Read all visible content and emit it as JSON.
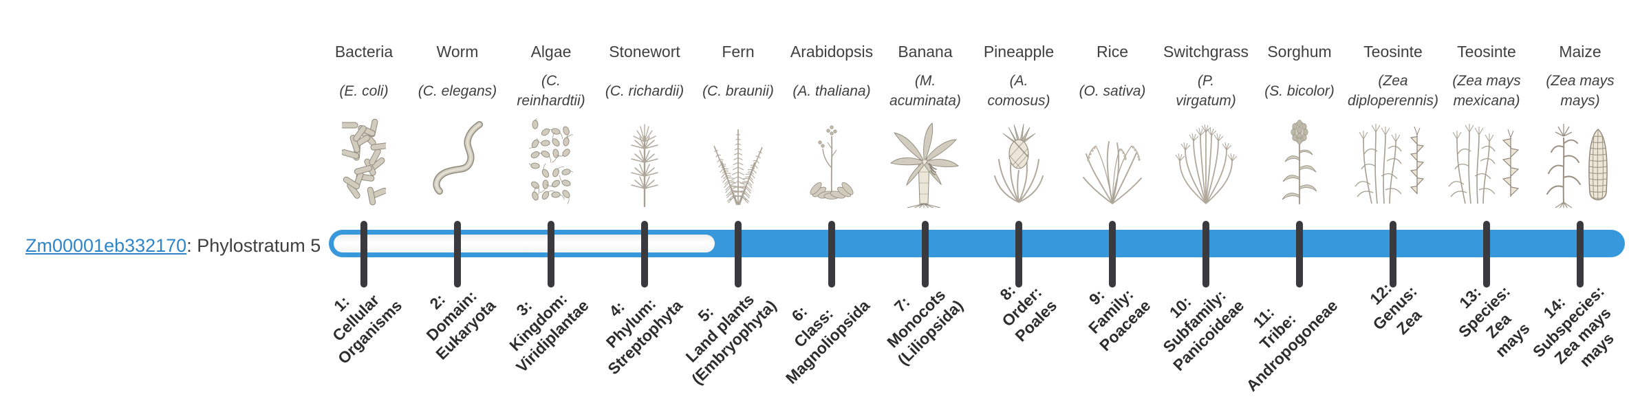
{
  "colors": {
    "bar_blue": "#3898dc",
    "tick": "#3a3a3e",
    "text": "#3f3f3f",
    "link_blue": "#2e86c8",
    "label_dark": "#2d2d2d"
  },
  "gene": {
    "id": "Zm00001eb332170",
    "rest": ": Phylostratum 5"
  },
  "chart_data": {
    "type": "bar",
    "title": "Gene phylostratum assignment timeline",
    "gene": "Zm00001eb332170",
    "phylostratum": 5,
    "categories": [
      "1: Cellular Organisms",
      "2: Domain: Eukaryota",
      "3: Kingdom: Viridiplantae",
      "4: Phylum: Streptophyta",
      "5: Land plants (Embryophyta)",
      "6: Class: Magnoliopsida",
      "7: Monocots (Liliopsida)",
      "8: Order: Poales",
      "9: Family: Poaceae",
      "10: Subfamily: Panicoideae",
      "11: Tribe: Andropogoneae",
      "12: Genus: Zea",
      "13: Species: Zea mays",
      "14: Subspecies: Zea mays mays"
    ],
    "bar_filled_range": [
      5,
      14
    ],
    "bar_unfilled_range": [
      1,
      5
    ],
    "legend_position": "none",
    "grid": false
  },
  "organisms": [
    {
      "name": "Bacteria",
      "sci": "(E. coli)",
      "icon": "bacteria-illustration",
      "stratum": "1:\nCellular\nOrganisms"
    },
    {
      "name": "Worm",
      "sci": "(C. elegans)",
      "icon": "worm-illustration",
      "stratum": "2:\nDomain:\nEukaryota"
    },
    {
      "name": "Algae",
      "sci": "(C.\nreinhardtii)",
      "icon": "algae-illustration",
      "stratum": "3:\nKingdom:\nViridiplantae"
    },
    {
      "name": "Stonewort",
      "sci": "(C. richardii)",
      "icon": "stonewort-illustration",
      "stratum": "4:\nPhylum:\nStreptophyta"
    },
    {
      "name": "Fern",
      "sci": "(C. braunii)",
      "icon": "fern-illustration",
      "stratum": "5:\nLand plants\n(Embryophyta)"
    },
    {
      "name": "Arabidopsis",
      "sci": "(A. thaliana)",
      "icon": "arabidopsis-illustration",
      "stratum": "6:\nClass:\nMagnoliopsida"
    },
    {
      "name": "Banana",
      "sci": "(M.\nacuminata)",
      "icon": "banana-illustration",
      "stratum": "7:\nMonocots\n(Liliopsida)"
    },
    {
      "name": "Pineapple",
      "sci": "(A.\ncomosus)",
      "icon": "pineapple-illustration",
      "stratum": "8:\nOrder:\nPoales"
    },
    {
      "name": "Rice",
      "sci": "(O. sativa)",
      "icon": "rice-illustration",
      "stratum": "9:\nFamily:\nPoaceae"
    },
    {
      "name": "Switchgrass",
      "sci": "(P.\nvirgatum)",
      "icon": "switchgrass-illustration",
      "stratum": "10:\nSubfamily:\nPanicoideae"
    },
    {
      "name": "Sorghum",
      "sci": "(S. bicolor)",
      "icon": "sorghum-illustration",
      "stratum": "11:\nTribe:\nAndropogoneae"
    },
    {
      "name": "Teosinte",
      "sci": "(Zea\ndiploperennis)",
      "icon": "teosinte-diploperennis-illustration",
      "stratum": "12:\nGenus:\nZea"
    },
    {
      "name": "Teosinte",
      "sci": "(Zea mays\nmexicana)",
      "icon": "teosinte-mexicana-illustration",
      "stratum": "13:\nSpecies:\nZea\nmays"
    },
    {
      "name": "Maize",
      "sci": "(Zea mays\nmays)",
      "icon": "maize-illustration",
      "stratum": "14:\nSubspecies:\nZea mays\nmays"
    }
  ]
}
